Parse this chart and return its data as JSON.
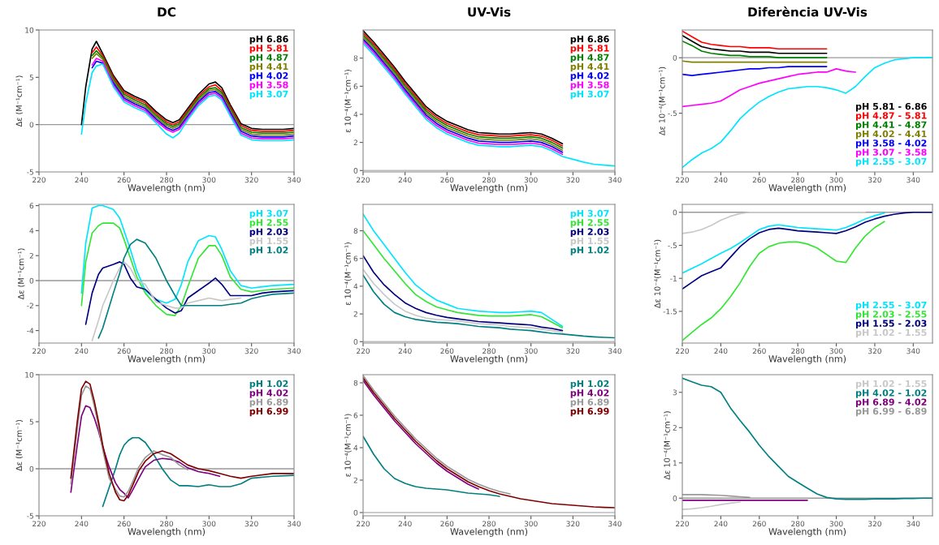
{
  "chart_data": [
    {
      "type": "line",
      "title": "DC",
      "xlabel": "Wavelength (nm)",
      "ylabel": "Δε (M⁻¹cm⁻¹)",
      "legend": "top right",
      "xlim": [
        220,
        340
      ],
      "xticks": [
        220,
        240,
        260,
        280,
        300,
        320,
        340
      ],
      "ylim": [
        -5,
        10
      ],
      "yticks": [
        -5,
        0,
        5,
        10
      ],
      "ref_lines": [
        {
          "axis": "y",
          "value": 0,
          "color": "#999999"
        }
      ],
      "x": [
        240,
        242,
        245,
        247,
        250,
        255,
        260,
        265,
        270,
        275,
        280,
        283,
        286,
        290,
        295,
        300,
        303,
        306,
        310,
        315,
        320,
        325,
        330,
        335,
        340
      ],
      "series": [
        {
          "name": "pH 6.86",
          "color": "#000000",
          "values": [
            0,
            4,
            8,
            8.8,
            7.5,
            5.2,
            3.6,
            3.0,
            2.5,
            1.4,
            0.5,
            0.2,
            0.5,
            1.7,
            3.2,
            4.3,
            4.5,
            3.9,
            2.1,
            0.1,
            -0.4,
            -0.5,
            -0.5,
            -0.5,
            -0.4
          ]
        },
        {
          "name": "pH 5.81",
          "color": "#ff0000",
          "values": [
            null,
            null,
            7.6,
            8.2,
            7.3,
            5.0,
            3.4,
            2.8,
            2.3,
            1.2,
            0.3,
            0,
            0.3,
            1.5,
            3.0,
            4.0,
            4.2,
            3.6,
            1.9,
            -0.1,
            -0.6,
            -0.7,
            -0.7,
            -0.7,
            -0.6
          ]
        },
        {
          "name": "pH 4.87",
          "color": "#008000",
          "values": [
            null,
            null,
            7.3,
            7.8,
            7.1,
            4.8,
            3.2,
            2.6,
            2.1,
            1.0,
            0.1,
            -0.2,
            0.1,
            1.3,
            2.8,
            3.8,
            3.9,
            3.4,
            1.7,
            -0.3,
            -0.8,
            -0.9,
            -0.9,
            -0.9,
            -0.8
          ]
        },
        {
          "name": "pH 4.41",
          "color": "#808000",
          "values": [
            null,
            null,
            7.0,
            7.5,
            6.9,
            4.6,
            3.0,
            2.4,
            1.9,
            0.8,
            -0.1,
            -0.4,
            -0.1,
            1.1,
            2.6,
            3.6,
            3.7,
            3.2,
            1.5,
            -0.5,
            -1.0,
            -1.1,
            -1.1,
            -1.1,
            -1.0
          ]
        },
        {
          "name": "pH 4.02",
          "color": "#0000ff",
          "values": [
            null,
            null,
            6.0,
            6.7,
            6.5,
            4.4,
            2.8,
            2.2,
            1.7,
            0.6,
            -0.3,
            -0.6,
            -0.3,
            0.9,
            2.4,
            3.4,
            3.5,
            3.0,
            1.3,
            -0.7,
            -1.2,
            -1.3,
            -1.3,
            -1.3,
            -1.2
          ]
        },
        {
          "name": "pH 3.58",
          "color": "#ff00ff",
          "values": [
            null,
            null,
            6.3,
            7.0,
            6.7,
            4.2,
            2.6,
            2.0,
            1.5,
            0.4,
            -0.5,
            -0.8,
            -0.5,
            0.7,
            2.2,
            3.2,
            3.3,
            2.8,
            1.1,
            -0.9,
            -1.4,
            -1.5,
            -1.5,
            -1.5,
            -1.4
          ]
        },
        {
          "name": "pH 3.07",
          "color": "#00e5ff",
          "values": [
            -1,
            2.3,
            5.5,
            6.2,
            6.4,
            4.0,
            2.4,
            1.8,
            1.3,
            0.2,
            -1.0,
            -1.4,
            -0.9,
            0.5,
            2.0,
            3.0,
            3.1,
            2.6,
            0.9,
            -1.1,
            -1.6,
            -1.7,
            -1.7,
            -1.7,
            -1.6
          ]
        }
      ]
    },
    {
      "type": "line",
      "title": "UV-Vis",
      "xlabel": "Wavelength (nm)",
      "ylabel": "ε 10⁻⁴(M⁻¹cm⁻¹)",
      "legend": "top right",
      "xlim": [
        220,
        340
      ],
      "xticks": [
        220,
        240,
        260,
        280,
        300,
        320,
        340
      ],
      "ylim": [
        -0.1,
        10
      ],
      "yticks": [
        0,
        2,
        4,
        6,
        8
      ],
      "ref_lines": [
        {
          "axis": "y",
          "value": 0,
          "color": "#bbbbbb"
        }
      ],
      "x": [
        220,
        225,
        230,
        235,
        240,
        245,
        250,
        255,
        260,
        265,
        270,
        275,
        280,
        285,
        290,
        295,
        300,
        305,
        310,
        315,
        320,
        325,
        330,
        335,
        340
      ],
      "series": [
        {
          "name": "pH 6.86",
          "color": "#000000",
          "values": [
            9.95,
            9.15,
            8.25,
            7.35,
            6.35,
            5.45,
            4.55,
            3.95,
            3.5,
            3.2,
            2.9,
            2.7,
            2.65,
            2.6,
            2.6,
            2.65,
            2.7,
            2.6,
            2.3,
            1.9,
            null,
            null,
            null,
            null,
            null
          ]
        },
        {
          "name": "pH 5.81",
          "color": "#ff0000",
          "values": [
            9.8,
            9.0,
            8.1,
            7.2,
            6.2,
            5.3,
            4.4,
            3.8,
            3.35,
            3.05,
            2.75,
            2.55,
            2.5,
            2.45,
            2.45,
            2.5,
            2.55,
            2.45,
            2.15,
            1.75,
            null,
            null,
            null,
            null,
            null
          ]
        },
        {
          "name": "pH 4.87",
          "color": "#008000",
          "values": [
            9.65,
            8.85,
            7.95,
            7.05,
            6.05,
            5.15,
            4.25,
            3.65,
            3.2,
            2.9,
            2.6,
            2.4,
            2.35,
            2.3,
            2.3,
            2.35,
            2.4,
            2.3,
            2.0,
            1.6,
            null,
            null,
            null,
            null,
            null
          ]
        },
        {
          "name": "pH 4.41",
          "color": "#808000",
          "values": [
            9.5,
            8.7,
            7.8,
            6.9,
            5.9,
            5.0,
            4.1,
            3.5,
            3.05,
            2.75,
            2.45,
            2.25,
            2.2,
            2.15,
            2.15,
            2.2,
            2.25,
            2.15,
            1.85,
            1.45,
            null,
            null,
            null,
            null,
            null
          ]
        },
        {
          "name": "pH 4.02",
          "color": "#0000ff",
          "values": [
            9.35,
            8.55,
            7.65,
            6.75,
            5.75,
            4.85,
            3.95,
            3.35,
            2.9,
            2.6,
            2.3,
            2.1,
            2.05,
            2.0,
            2.0,
            2.05,
            2.1,
            2.0,
            1.7,
            1.3,
            null,
            null,
            null,
            null,
            null
          ]
        },
        {
          "name": "pH 3.58",
          "color": "#ff00ff",
          "values": [
            9.2,
            8.4,
            7.5,
            6.6,
            5.6,
            4.7,
            3.8,
            3.2,
            2.75,
            2.45,
            2.15,
            1.95,
            1.9,
            1.85,
            1.85,
            1.9,
            1.95,
            1.85,
            1.55,
            1.15,
            null,
            null,
            null,
            null,
            null
          ]
        },
        {
          "name": "pH 3.07",
          "color": "#00e5ff",
          "values": [
            9.05,
            8.25,
            7.35,
            6.45,
            5.45,
            4.55,
            3.65,
            3.05,
            2.6,
            2.3,
            2.0,
            1.8,
            1.75,
            1.7,
            1.7,
            1.75,
            1.8,
            1.7,
            1.4,
            1.0,
            0.8,
            0.6,
            0.45,
            0.38,
            0.33
          ]
        }
      ]
    },
    {
      "type": "line",
      "title": "Diferència UV-Vis",
      "xlabel": "Wavelength (nm)",
      "ylabel": "Δε 10⁻⁴(M⁻¹cm⁻¹)",
      "legend": "bottom right",
      "xlim": [
        220,
        350
      ],
      "xticks": [
        220,
        240,
        260,
        280,
        300,
        320,
        340
      ],
      "ylim": [
        -1.03,
        0.25
      ],
      "yticks": [
        0,
        {
          "value": -0.5,
          "label": "-.5"
        }
      ],
      "ref_lines": [
        {
          "axis": "y",
          "value": 0,
          "color": "#999999"
        }
      ],
      "x": [
        220,
        225,
        230,
        235,
        240,
        245,
        250,
        255,
        260,
        265,
        270,
        275,
        280,
        285,
        290,
        295,
        300,
        305,
        310,
        315,
        320,
        325,
        330,
        335,
        340,
        345,
        350
      ],
      "series": [
        {
          "name": "pH 5.81 - 6.86",
          "color": "#000000",
          "values": [
            0.2,
            0.15,
            0.1,
            0.08,
            0.07,
            0.06,
            0.06,
            0.05,
            0.05,
            0.05,
            0.04,
            0.04,
            0.04,
            0.04,
            0.04,
            0.04,
            null,
            null,
            null,
            null,
            null,
            null,
            null,
            null,
            null,
            null,
            null
          ]
        },
        {
          "name": "pH 4.87 - 5.81",
          "color": "#ff0000",
          "values": [
            0.24,
            0.19,
            0.14,
            0.12,
            0.11,
            0.1,
            0.1,
            0.09,
            0.09,
            0.09,
            0.08,
            0.08,
            0.08,
            0.08,
            0.08,
            0.08,
            null,
            null,
            null,
            null,
            null,
            null,
            null,
            null,
            null,
            null,
            null
          ]
        },
        {
          "name": "pH 4.41 - 4.87",
          "color": "#008000",
          "values": [
            0.15,
            0.11,
            0.06,
            0.04,
            0.03,
            0.02,
            0.02,
            0.01,
            0.01,
            0.01,
            0,
            0,
            0,
            0,
            0,
            0,
            null,
            null,
            null,
            null,
            null,
            null,
            null,
            null,
            null,
            null,
            null
          ]
        },
        {
          "name": "pH 4.02 - 4.41",
          "color": "#808000",
          "values": [
            -0.03,
            -0.04,
            -0.04,
            -0.04,
            -0.04,
            -0.04,
            -0.04,
            -0.04,
            -0.04,
            -0.04,
            -0.04,
            -0.04,
            -0.04,
            -0.04,
            -0.04,
            -0.04,
            null,
            null,
            null,
            null,
            null,
            null,
            null,
            null,
            null,
            null,
            null
          ]
        },
        {
          "name": "pH 3.58 - 4.02",
          "color": "#0000ff",
          "values": [
            -0.15,
            -0.16,
            -0.15,
            -0.14,
            -0.13,
            -0.12,
            -0.11,
            -0.1,
            -0.1,
            -0.09,
            -0.09,
            -0.08,
            -0.08,
            -0.08,
            -0.08,
            -0.08,
            null,
            null,
            null,
            null,
            null,
            null,
            null,
            null,
            null,
            null,
            null
          ]
        },
        {
          "name": "pH 3.07 - 3.58",
          "color": "#ff00ff",
          "values": [
            -0.44,
            -0.43,
            -0.42,
            -0.41,
            -0.39,
            -0.34,
            -0.29,
            -0.26,
            -0.23,
            -0.21,
            -0.19,
            -0.17,
            -0.15,
            -0.14,
            -0.13,
            -0.13,
            -0.1,
            -0.12,
            -0.13,
            null,
            null,
            null,
            null,
            null,
            null,
            null,
            null
          ]
        },
        {
          "name": "pH 2.55 - 3.07",
          "color": "#00e5ff",
          "values": [
            -0.99,
            -0.92,
            -0.86,
            -0.82,
            -0.76,
            -0.66,
            -0.55,
            -0.47,
            -0.4,
            -0.35,
            -0.31,
            -0.28,
            -0.27,
            -0.26,
            -0.26,
            -0.27,
            -0.29,
            -0.32,
            -0.26,
            -0.17,
            -0.09,
            -0.05,
            -0.02,
            -0.01,
            0,
            0,
            0
          ]
        }
      ]
    },
    {
      "type": "line",
      "xlabel": "Wavelength (nm)",
      "ylabel": "Δε (M⁻¹cm⁻¹)",
      "legend": "top right",
      "xlim": [
        220,
        340
      ],
      "xticks": [
        220,
        240,
        260,
        280,
        300,
        320,
        340
      ],
      "ylim": [
        -5,
        6.1
      ],
      "yticks": [
        -4,
        -2,
        0,
        2,
        4,
        6
      ],
      "ref_lines": [
        {
          "axis": "y",
          "value": 0,
          "color": "#999999"
        }
      ],
      "x": [
        240,
        242,
        245,
        248,
        250,
        255,
        258,
        260,
        263,
        266,
        270,
        275,
        280,
        284,
        287,
        290,
        295,
        300,
        303,
        306,
        310,
        315,
        320,
        325,
        330,
        340
      ],
      "series": [
        {
          "name": "pH 3.07",
          "color": "#00e5ff",
          "values": [
            -1,
            3,
            5.8,
            6.0,
            6.0,
            5.7,
            5,
            4,
            2.5,
            0.8,
            -0.8,
            -1.5,
            -1.8,
            -1.5,
            -0.3,
            1.5,
            3.2,
            3.6,
            3.5,
            2.5,
            0.8,
            -0.4,
            -0.6,
            -0.5,
            -0.4,
            -0.3
          ]
        },
        {
          "name": "pH 2.55",
          "color": "#33e633",
          "values": [
            -2,
            1.5,
            3.8,
            4.4,
            4.6,
            4.6,
            4.2,
            3.3,
            1.8,
            0.3,
            -1,
            -2,
            -2.7,
            -2.8,
            -2,
            -0.5,
            1.8,
            2.8,
            2.8,
            2,
            0.3,
            -0.7,
            -0.9,
            -0.8,
            -0.7,
            -0.6
          ]
        },
        {
          "name": "pH 2.03",
          "color": "#000080",
          "values": [
            null,
            -3.5,
            -1,
            0.5,
            1,
            1.3,
            1.5,
            1.3,
            0.2,
            -0.5,
            -0.7,
            -1.5,
            -2.2,
            -2.6,
            -2.4,
            -1.4,
            -0.8,
            -0.2,
            0.2,
            -0.3,
            -1.2,
            -1.2,
            -1.2,
            -1.0,
            -0.9,
            -0.8
          ]
        },
        {
          "name": "pH 1.55",
          "color": "#c8c8c8",
          "values": [
            null,
            null,
            -4.8,
            -3.2,
            -2,
            0,
            1.0,
            1.5,
            1,
            0,
            -0.3,
            -1.7,
            -2.0,
            -2.2,
            -2.2,
            -1.8,
            -1.6,
            -1.4,
            -1.5,
            -1.6,
            -1.5,
            -1.4,
            null,
            null,
            null,
            null
          ]
        },
        {
          "name": "pH 1.02",
          "color": "#008080",
          "values": [
            null,
            null,
            null,
            -4.6,
            -3.8,
            -1,
            0.6,
            1.8,
            2.9,
            3.3,
            3,
            1.8,
            0,
            -1.2,
            -2,
            -2,
            -2,
            -2,
            -2,
            -2,
            -1.9,
            -1.8,
            -1.45,
            -1.25,
            -1.1,
            -1.0
          ]
        }
      ]
    },
    {
      "type": "line",
      "xlabel": "Wavelength (nm)",
      "ylabel": "ε 10⁻⁴(M⁻¹cm⁻¹)",
      "legend": "top right",
      "xlim": [
        220,
        340
      ],
      "xticks": [
        220,
        240,
        260,
        280,
        300,
        320,
        340
      ],
      "ylim": [
        -0.1,
        9.9
      ],
      "yticks": [
        0,
        2,
        4,
        6,
        8
      ],
      "ref_lines": [
        {
          "axis": "y",
          "value": 0,
          "color": "#bbbbbb"
        }
      ],
      "x": [
        220,
        225,
        230,
        235,
        240,
        245,
        250,
        255,
        260,
        265,
        270,
        275,
        280,
        285,
        290,
        295,
        300,
        305,
        310,
        315,
        320,
        325,
        330,
        335,
        340
      ],
      "series": [
        {
          "name": "pH 3.07",
          "color": "#00e5ff",
          "values": [
            9.2,
            8.0,
            7.0,
            6.0,
            5.0,
            4.1,
            3.5,
            3.0,
            2.7,
            2.4,
            2.3,
            2.2,
            2.15,
            2.1,
            2.1,
            2.15,
            2.2,
            2.1,
            1.6,
            1.1,
            null,
            null,
            null,
            null,
            null
          ]
        },
        {
          "name": "pH 2.55",
          "color": "#33e633",
          "values": [
            8.0,
            7.0,
            6.0,
            5.1,
            4.2,
            3.4,
            2.9,
            2.5,
            2.3,
            2.1,
            2.0,
            1.9,
            1.85,
            1.85,
            1.85,
            1.9,
            1.95,
            1.8,
            1.4,
            1.0,
            null,
            null,
            null,
            null,
            null
          ]
        },
        {
          "name": "pH 2.03",
          "color": "#000080",
          "values": [
            6.2,
            5.0,
            4.1,
            3.4,
            2.8,
            2.4,
            2.1,
            1.9,
            1.75,
            1.65,
            1.55,
            1.45,
            1.4,
            1.35,
            1.3,
            1.25,
            1.2,
            1.05,
            0.95,
            0.8,
            null,
            null,
            null,
            null,
            null
          ]
        },
        {
          "name": "pH 1.55",
          "color": "#c8c8c8",
          "values": [
            5.2,
            4.2,
            3.4,
            2.7,
            2.2,
            1.9,
            1.7,
            1.6,
            1.55,
            1.5,
            1.4,
            1.3,
            1.25,
            1.2,
            1.1,
            1.05,
            1.0,
            0.9,
            0.8,
            0.7,
            null,
            null,
            null,
            null,
            null
          ]
        },
        {
          "name": "pH 1.02",
          "color": "#008080",
          "values": [
            4.8,
            3.6,
            2.7,
            2.1,
            1.8,
            1.6,
            1.5,
            1.4,
            1.35,
            1.3,
            1.2,
            1.1,
            1.05,
            1.0,
            0.9,
            0.85,
            0.8,
            0.7,
            0.6,
            0.55,
            0.48,
            0.4,
            0.35,
            0.31,
            0.28
          ]
        }
      ]
    },
    {
      "type": "line",
      "xlabel": "Wavelength (nm)",
      "ylabel": "Δε 10⁻⁴(M⁻¹cm⁻¹)",
      "legend": "bottom right",
      "xlim": [
        220,
        350
      ],
      "xticks": [
        220,
        240,
        260,
        280,
        300,
        320,
        340
      ],
      "ylim": [
        -1.98,
        0.12
      ],
      "yticks": [
        0,
        {
          "value": -0.5,
          "label": "-.5"
        },
        -1,
        -1.5
      ],
      "ref_lines": [
        {
          "axis": "y",
          "value": 0,
          "color": "#999999"
        }
      ],
      "x": [
        220,
        225,
        230,
        235,
        240,
        245,
        250,
        255,
        260,
        265,
        270,
        275,
        280,
        285,
        290,
        295,
        300,
        305,
        310,
        315,
        320,
        325,
        330,
        335,
        340,
        345,
        350
      ],
      "series": [
        {
          "name": "pH 2.55 - 3.07",
          "color": "#00e5ff",
          "values": [
            -0.92,
            -0.85,
            -0.78,
            -0.7,
            -0.62,
            -0.55,
            -0.46,
            -0.36,
            -0.26,
            -0.21,
            -0.19,
            -0.21,
            -0.23,
            -0.24,
            -0.25,
            -0.26,
            -0.27,
            -0.23,
            -0.17,
            -0.1,
            -0.05,
            -0.01,
            null,
            null,
            null,
            null,
            null
          ]
        },
        {
          "name": "pH 2.03 - 2.55",
          "color": "#33e633",
          "values": [
            -1.94,
            -1.82,
            -1.7,
            -1.6,
            -1.46,
            -1.28,
            -1.07,
            -0.82,
            -0.62,
            -0.52,
            -0.47,
            -0.45,
            -0.45,
            -0.48,
            -0.54,
            -0.64,
            -0.74,
            -0.76,
            -0.54,
            -0.36,
            -0.23,
            -0.14,
            null,
            null,
            null,
            null,
            null
          ]
        },
        {
          "name": "pH 1.55 - 2.03",
          "color": "#000080",
          "values": [
            -1.16,
            -1.06,
            -0.96,
            -0.9,
            -0.84,
            -0.68,
            -0.52,
            -0.4,
            -0.31,
            -0.26,
            -0.24,
            -0.26,
            -0.28,
            -0.29,
            -0.3,
            -0.31,
            -0.32,
            -0.28,
            -0.22,
            -0.15,
            -0.1,
            -0.06,
            -0.03,
            -0.01,
            0,
            0,
            0
          ]
        },
        {
          "name": "pH 1.02 - 1.55",
          "color": "#c8c8c8",
          "values": [
            -0.32,
            -0.3,
            -0.26,
            -0.2,
            -0.12,
            -0.06,
            -0.02,
            0,
            0,
            0,
            0,
            0,
            0,
            0,
            0,
            0,
            0,
            0,
            0,
            0,
            null,
            null,
            null,
            null,
            null,
            null,
            null
          ]
        }
      ]
    },
    {
      "type": "line",
      "xlabel": "Wavelength (nm)",
      "ylabel": "Δε (M⁻¹cm⁻¹)",
      "legend": "top right",
      "xlim": [
        220,
        340
      ],
      "xticks": [
        220,
        240,
        260,
        280,
        300,
        320,
        340
      ],
      "ylim": [
        -5,
        10
      ],
      "yticks": [
        -5,
        0,
        5,
        10
      ],
      "ref_lines": [
        {
          "axis": "y",
          "value": 0,
          "color": "#999999"
        }
      ],
      "x": [
        235,
        238,
        240,
        242,
        244,
        246,
        248,
        250,
        253,
        256,
        258,
        260,
        262,
        264,
        267,
        270,
        274,
        278,
        282,
        286,
        290,
        295,
        300,
        305,
        310,
        315,
        320,
        330,
        340
      ],
      "series": [
        {
          "name": "pH 1.02",
          "color": "#008080",
          "values": [
            null,
            null,
            null,
            null,
            null,
            null,
            null,
            -4,
            -2,
            0,
            1.5,
            2.5,
            3,
            3.3,
            3.3,
            2.8,
            1.5,
            0,
            -1.2,
            -1.8,
            -1.8,
            -1.9,
            -1.7,
            -1.9,
            -1.9,
            -1.6,
            -1,
            -0.8,
            -0.7
          ]
        },
        {
          "name": "pH 4.02",
          "color": "#800080",
          "values": [
            -2.5,
            2.5,
            5.6,
            6.7,
            6.5,
            5.4,
            4.0,
            2.3,
            0.2,
            -1.5,
            -2.2,
            -2.6,
            -3.1,
            -2.3,
            -1.0,
            0.2,
            0.9,
            1.1,
            1.0,
            0.7,
            0.1,
            -0.3,
            -0.5,
            -0.8,
            null,
            null,
            null,
            null,
            null
          ]
        },
        {
          "name": "pH 6.89",
          "color": "#999999",
          "values": [
            -1.6,
            4.2,
            7.8,
            8.8,
            8.5,
            6.7,
            4.5,
            2.0,
            -1.0,
            -2.2,
            -2.9,
            -3.0,
            -2.4,
            -1.4,
            0.2,
            1.2,
            1.9,
            1.5,
            1.2,
            0.4,
            -0.1,
            null,
            null,
            null,
            null,
            null,
            null,
            null,
            null
          ]
        },
        {
          "name": "pH 6.99",
          "color": "#800000",
          "values": [
            -1,
            5,
            8.5,
            9.3,
            9,
            7.2,
            5,
            2.5,
            -0.5,
            -2.5,
            -3.3,
            -3.4,
            -2.8,
            -1.8,
            -0.2,
            0.8,
            1.6,
            1.9,
            1.6,
            1,
            0.4,
            0,
            -0.2,
            -0.5,
            -0.8,
            -1,
            -0.8,
            -0.5,
            -0.5
          ]
        }
      ]
    },
    {
      "type": "line",
      "xlabel": "Wavelength (nm)",
      "ylabel": "ε 10⁻⁴(M⁻¹cm⁻¹)",
      "legend": "top right",
      "xlim": [
        220,
        340
      ],
      "xticks": [
        220,
        240,
        260,
        280,
        300,
        320,
        340
      ],
      "ylim": [
        -0.2,
        8.5
      ],
      "yticks": [
        0,
        2,
        4,
        6,
        8
      ],
      "ref_lines": [
        {
          "axis": "y",
          "value": 0,
          "color": "#bbbbbb"
        }
      ],
      "x": [
        220,
        225,
        230,
        235,
        240,
        245,
        250,
        255,
        260,
        265,
        270,
        275,
        280,
        285,
        290,
        295,
        300,
        305,
        310,
        315,
        320,
        325,
        330,
        335,
        340
      ],
      "series": [
        {
          "name": "pH 1.02",
          "color": "#008080",
          "values": [
            4.7,
            3.6,
            2.7,
            2.1,
            1.8,
            1.6,
            1.5,
            1.45,
            1.4,
            1.3,
            1.2,
            1.15,
            1.1,
            1.0,
            null,
            null,
            null,
            null,
            null,
            null,
            null,
            null,
            null,
            null,
            null
          ]
        },
        {
          "name": "pH 4.02",
          "color": "#800080",
          "values": [
            8.15,
            7.25,
            6.45,
            5.65,
            4.95,
            4.25,
            3.65,
            3.05,
            2.55,
            2.15,
            1.75,
            1.45,
            null,
            null,
            null,
            null,
            null,
            null,
            null,
            null,
            null,
            null,
            null,
            null,
            null
          ]
        },
        {
          "name": "pH 6.89",
          "color": "#999999",
          "values": [
            8.45,
            7.55,
            6.75,
            5.95,
            5.25,
            4.55,
            3.95,
            3.35,
            2.85,
            2.45,
            2.05,
            1.75,
            1.5,
            1.3,
            1.15,
            null,
            null,
            null,
            null,
            null,
            null,
            null,
            null,
            null,
            null
          ]
        },
        {
          "name": "pH 6.99",
          "color": "#800000",
          "values": [
            8.3,
            7.4,
            6.6,
            5.8,
            5.1,
            4.4,
            3.8,
            3.2,
            2.7,
            2.3,
            1.9,
            1.6,
            1.35,
            1.15,
            1.0,
            0.85,
            0.75,
            0.65,
            0.55,
            0.5,
            0.45,
            0.4,
            0.35,
            0.32,
            0.3
          ]
        }
      ]
    },
    {
      "type": "line",
      "xlabel": "Wavelength (nm)",
      "ylabel": "Δε 10⁻⁴(M⁻¹cm⁻¹)",
      "legend": "top right",
      "xlim": [
        220,
        350
      ],
      "xticks": [
        220,
        240,
        260,
        280,
        300,
        320,
        340
      ],
      "ylim": [
        -0.5,
        3.5
      ],
      "yticks": [
        0,
        1,
        2,
        3
      ],
      "ref_lines": [
        {
          "axis": "y",
          "value": 0,
          "color": "#999999"
        }
      ],
      "x": [
        220,
        225,
        230,
        235,
        240,
        245,
        250,
        255,
        260,
        265,
        270,
        275,
        280,
        285,
        290,
        295,
        300,
        305,
        310,
        315,
        320,
        325,
        330,
        335,
        340,
        345,
        350
      ],
      "series": [
        {
          "name": "pH 1.02 - 1.55",
          "color": "#c8c8c8",
          "values": [
            -0.32,
            -0.3,
            -0.27,
            -0.23,
            -0.18,
            -0.14,
            -0.11,
            null,
            null,
            null,
            null,
            null,
            null,
            null,
            null,
            null,
            null,
            null,
            null,
            null,
            null,
            null,
            null,
            null,
            null,
            null,
            null
          ]
        },
        {
          "name": "pH 4.02 - 1.02",
          "color": "#008080",
          "values": [
            3.4,
            3.3,
            3.2,
            3.16,
            3.0,
            2.56,
            2.2,
            1.87,
            1.5,
            1.18,
            0.9,
            0.62,
            0.45,
            0.28,
            0.12,
            0.02,
            -0.02,
            -0.03,
            -0.03,
            -0.03,
            -0.02,
            -0.02,
            -0.02,
            -0.01,
            -0.01,
            0,
            0
          ]
        },
        {
          "name": "pH 6.89 - 4.02",
          "color": "#800080",
          "values": [
            -0.06,
            -0.06,
            -0.06,
            -0.06,
            -0.06,
            -0.06,
            -0.06,
            -0.06,
            -0.06,
            -0.06,
            -0.06,
            -0.06,
            -0.06,
            -0.06,
            null,
            null,
            null,
            null,
            null,
            null,
            null,
            null,
            null,
            null,
            null,
            null,
            null
          ]
        },
        {
          "name": "pH 6.99 - 6.89",
          "color": "#999999",
          "values": [
            0.1,
            0.1,
            0.1,
            0.09,
            0.08,
            0.06,
            0.04,
            0.02,
            null,
            null,
            null,
            null,
            null,
            null,
            null,
            null,
            null,
            null,
            null,
            null,
            null,
            null,
            null,
            null,
            null,
            null,
            null
          ]
        }
      ]
    }
  ]
}
